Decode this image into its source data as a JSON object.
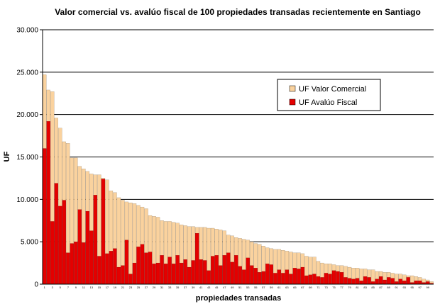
{
  "chart_data": {
    "type": "bar",
    "title": "Valor comercial vs. avalúo fiscal de 100 propiedades transadas recientemente en Santiago",
    "xlabel": "propiedades transadas",
    "ylabel": "UF",
    "ylim": [
      0,
      30000
    ],
    "yticks": [
      "0",
      "5.000",
      "10.000",
      "15.000",
      "20.000",
      "25.000",
      "30.000"
    ],
    "grid": true,
    "legend_position": "right-upper",
    "x": [
      1,
      2,
      3,
      4,
      5,
      6,
      7,
      8,
      9,
      10,
      11,
      12,
      13,
      14,
      15,
      16,
      17,
      18,
      19,
      20,
      21,
      22,
      23,
      24,
      25,
      26,
      27,
      28,
      29,
      30,
      31,
      32,
      33,
      34,
      35,
      36,
      37,
      38,
      39,
      40,
      41,
      42,
      43,
      44,
      45,
      46,
      47,
      48,
      49,
      50,
      51,
      52,
      53,
      54,
      55,
      56,
      57,
      58,
      59,
      60,
      61,
      62,
      63,
      64,
      65,
      66,
      67,
      68,
      69,
      70,
      71,
      72,
      73,
      74,
      75,
      76,
      77,
      78,
      79,
      80,
      81,
      82,
      83,
      84,
      85,
      86,
      87,
      88,
      89,
      90,
      91,
      92,
      93,
      94,
      95,
      96,
      97,
      98,
      99,
      100
    ],
    "series": [
      {
        "name": "UF Valor Comercial",
        "color": "#FAD29E",
        "values": [
          24700,
          22900,
          22700,
          19600,
          18400,
          16800,
          16600,
          14900,
          14900,
          13900,
          13600,
          13300,
          13000,
          12900,
          12900,
          12500,
          12300,
          11000,
          10800,
          10200,
          9900,
          9700,
          9600,
          9500,
          9300,
          9100,
          8900,
          8100,
          8000,
          7900,
          7500,
          7400,
          7400,
          7300,
          7200,
          7000,
          6900,
          6800,
          6800,
          6700,
          6700,
          6700,
          6600,
          6600,
          6500,
          6400,
          6300,
          5800,
          5700,
          5500,
          5400,
          5300,
          5200,
          5000,
          4800,
          4700,
          4500,
          4300,
          4200,
          4100,
          4100,
          4000,
          3900,
          3800,
          3700,
          3700,
          3600,
          3300,
          3200,
          3200,
          2700,
          2500,
          2400,
          2400,
          2300,
          2200,
          2200,
          2100,
          2000,
          1900,
          1900,
          1800,
          1800,
          1700,
          1700,
          1500,
          1500,
          1400,
          1400,
          1300,
          1200,
          1200,
          1100,
          1000,
          1000,
          900,
          800,
          600,
          500,
          300
        ]
      },
      {
        "name": "UF Avalúo Fiscal",
        "color": "#E40000",
        "values": [
          16000,
          19200,
          7400,
          11900,
          9200,
          9900,
          3700,
          4800,
          5000,
          8800,
          4900,
          8600,
          6300,
          10500,
          3300,
          12400,
          3600,
          3900,
          4200,
          2000,
          2200,
          5200,
          1200,
          2500,
          4400,
          4700,
          3700,
          3800,
          2400,
          2500,
          3400,
          2400,
          3200,
          2400,
          3400,
          2500,
          2900,
          2000,
          2800,
          6000,
          2900,
          2800,
          1600,
          3300,
          3400,
          2200,
          3400,
          3700,
          2600,
          3400,
          2100,
          1700,
          3100,
          2200,
          1900,
          1400,
          1500,
          2400,
          2300,
          1300,
          1700,
          1300,
          1700,
          1200,
          1900,
          1800,
          2000,
          1000,
          1100,
          1200,
          900,
          800,
          1300,
          1200,
          1600,
          1500,
          1400,
          800,
          700,
          600,
          700,
          400,
          900,
          800,
          300,
          600,
          900,
          500,
          800,
          700,
          300,
          600,
          400,
          800,
          200,
          400,
          400,
          200,
          300,
          100
        ]
      }
    ]
  }
}
